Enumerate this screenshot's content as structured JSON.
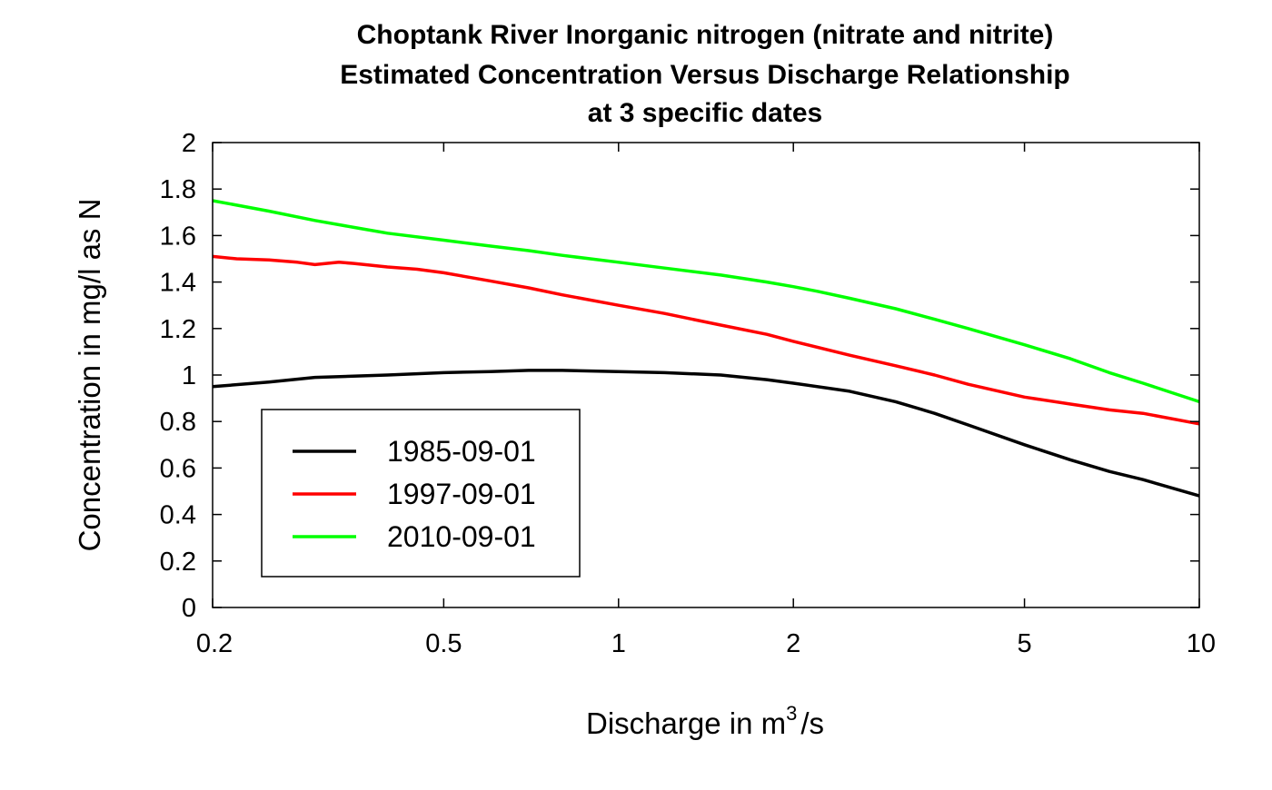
{
  "chart_data": {
    "type": "line",
    "title_lines": [
      "Choptank River    Inorganic nitrogen (nitrate and nitrite)",
      "Estimated Concentration Versus Discharge Relationship",
      "at 3 specific dates"
    ],
    "xlabel_prefix": "Discharge in m",
    "xlabel_superscript": "3",
    "xlabel_suffix": "/s",
    "ylabel": "Concentration in mg/l as N",
    "x_scale": "log",
    "xlim": [
      0.2,
      10
    ],
    "ylim": [
      0,
      2
    ],
    "x_ticks": [
      0.2,
      0.5,
      1,
      2,
      5,
      10
    ],
    "x_tick_labels": [
      "0.2",
      "0.5",
      "1",
      "2",
      "5",
      "10"
    ],
    "y_ticks": [
      0,
      0.2,
      0.4,
      0.6,
      0.8,
      1,
      1.2,
      1.4,
      1.6,
      1.8,
      2
    ],
    "y_tick_labels": [
      "0",
      "0.2",
      "0.4",
      "0.6",
      "0.8",
      "1",
      "1.2",
      "1.4",
      "1.6",
      "1.8",
      "2"
    ],
    "grid": false,
    "legend_position": "bottom-left",
    "series": [
      {
        "name": "1985-09-01",
        "color": "#000000",
        "x": [
          0.2,
          0.25,
          0.3,
          0.4,
          0.5,
          0.6,
          0.7,
          0.8,
          1.0,
          1.2,
          1.5,
          1.8,
          2.0,
          2.5,
          3.0,
          3.5,
          4.0,
          5.0,
          6.0,
          7.0,
          8.0,
          10.0
        ],
        "y": [
          0.95,
          0.97,
          0.99,
          1.0,
          1.01,
          1.015,
          1.02,
          1.02,
          1.015,
          1.01,
          1.0,
          0.98,
          0.965,
          0.93,
          0.885,
          0.835,
          0.785,
          0.7,
          0.635,
          0.585,
          0.55,
          0.48
        ]
      },
      {
        "name": "1997-09-01",
        "color": "#ff0000",
        "x": [
          0.2,
          0.22,
          0.25,
          0.28,
          0.3,
          0.33,
          0.35,
          0.4,
          0.45,
          0.5,
          0.6,
          0.7,
          0.8,
          1.0,
          1.2,
          1.5,
          1.8,
          2.0,
          2.5,
          3.0,
          3.5,
          4.0,
          5.0,
          6.0,
          7.0,
          8.0,
          10.0
        ],
        "y": [
          1.51,
          1.5,
          1.495,
          1.485,
          1.475,
          1.485,
          1.48,
          1.465,
          1.455,
          1.44,
          1.405,
          1.375,
          1.345,
          1.3,
          1.265,
          1.215,
          1.175,
          1.145,
          1.085,
          1.04,
          1.0,
          0.96,
          0.905,
          0.875,
          0.85,
          0.835,
          0.79
        ]
      },
      {
        "name": "2010-09-01",
        "color": "#00ff00",
        "x": [
          0.2,
          0.25,
          0.3,
          0.35,
          0.4,
          0.5,
          0.6,
          0.7,
          0.8,
          1.0,
          1.2,
          1.5,
          1.8,
          2.0,
          2.2,
          2.5,
          3.0,
          3.5,
          4.0,
          5.0,
          6.0,
          7.0,
          8.0,
          10.0
        ],
        "y": [
          1.75,
          1.705,
          1.665,
          1.635,
          1.61,
          1.58,
          1.555,
          1.535,
          1.515,
          1.485,
          1.46,
          1.43,
          1.4,
          1.38,
          1.36,
          1.33,
          1.285,
          1.24,
          1.2,
          1.13,
          1.07,
          1.01,
          0.965,
          0.885
        ]
      }
    ]
  }
}
